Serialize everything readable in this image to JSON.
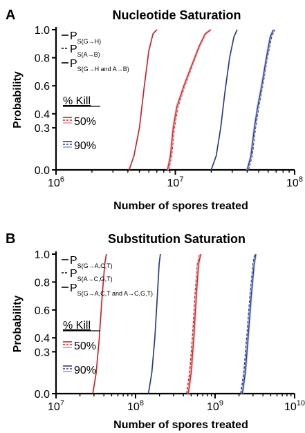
{
  "chart_data": [
    {
      "type": "line",
      "panel_label": "A",
      "title": "Nucleotide Saturation",
      "xlabel": "Number of spores treated",
      "ylabel": "Probability",
      "x_scale": "log",
      "xlim": [
        1000000,
        100000000
      ],
      "ylim": [
        0,
        1
      ],
      "x_ticks": [
        {
          "value": 1000000,
          "base": "10",
          "exp": "6"
        },
        {
          "value": 10000000,
          "base": "10",
          "exp": "7"
        },
        {
          "value": 100000000,
          "base": "10",
          "exp": "8"
        }
      ],
      "y_ticks": [
        {
          "value": 0.0,
          "label": "0.0"
        },
        {
          "value": 0.3,
          "label": "0.3"
        },
        {
          "value": 0.4,
          "label": "0.4"
        },
        {
          "value": 0.6,
          "label": "0.6"
        },
        {
          "value": 0.8,
          "label": "0.8"
        },
        {
          "value": 1.0,
          "label": "1.0"
        }
      ],
      "legend": {
        "placement": "top-left",
        "entries": [
          {
            "dash": "solid",
            "main": "P",
            "sub": "S(G→H)"
          },
          {
            "dash": "dashed",
            "main": "P",
            "sub": "S(A→B)"
          },
          {
            "dash": "solid",
            "main": "P",
            "sub": "S(G→H and A→B)"
          }
        ],
        "kill_title": "% Kill",
        "kill_entries": [
          {
            "label": "50%",
            "color": "#cc2229",
            "light": "#f2a8a8"
          },
          {
            "label": "90%",
            "color": "#2b3990",
            "light": "#a9b4e0"
          }
        ]
      },
      "series": [
        {
          "color": "#cc2229",
          "dash": "solid",
          "x": [
            4100000,
            4500000,
            5000000,
            5500000,
            6000000,
            6500000,
            7000000
          ],
          "y": [
            0.0,
            0.1,
            0.3,
            0.6,
            0.85,
            0.97,
            1.0
          ]
        },
        {
          "color": "#cc2229",
          "dash": "dashed",
          "x": [
            8800000,
            9300000,
            9800000,
            10500000,
            12000000,
            14000000,
            16000000,
            18000000,
            20000000
          ],
          "y": [
            0.0,
            0.1,
            0.3,
            0.45,
            0.6,
            0.75,
            0.88,
            0.97,
            1.0
          ]
        },
        {
          "color": "#cc2229",
          "dash": "solid",
          "light": "#f2a8a8",
          "x": [
            8600000,
            9100000,
            9600000,
            10300000,
            11800000,
            13800000,
            15800000,
            17800000,
            19800000
          ],
          "y": [
            0.0,
            0.1,
            0.3,
            0.45,
            0.6,
            0.75,
            0.88,
            0.97,
            1.0
          ]
        },
        {
          "color": "#2b3990",
          "dash": "solid",
          "x": [
            20000000,
            22000000,
            24000000,
            26000000,
            28500000,
            31000000,
            33000000
          ],
          "y": [
            0.0,
            0.1,
            0.3,
            0.55,
            0.8,
            0.95,
            1.0
          ]
        },
        {
          "color": "#2b3990",
          "dash": "dashed",
          "x": [
            41000000,
            44000000,
            47000000,
            50000000,
            54000000,
            59000000,
            64000000,
            68000000
          ],
          "y": [
            0.0,
            0.1,
            0.3,
            0.45,
            0.6,
            0.8,
            0.95,
            1.0
          ]
        },
        {
          "color": "#2b3990",
          "dash": "solid",
          "light": "#a9b4e0",
          "x": [
            40000000,
            43000000,
            46000000,
            49000000,
            53000000,
            58000000,
            62500000,
            66500000
          ],
          "y": [
            0.0,
            0.1,
            0.3,
            0.45,
            0.6,
            0.8,
            0.95,
            1.0
          ]
        }
      ]
    },
    {
      "type": "line",
      "panel_label": "B",
      "title": "Substitution Saturation",
      "xlabel": "Number of spores treated",
      "ylabel": "Probability",
      "x_scale": "log",
      "xlim": [
        10000000,
        10000000000
      ],
      "ylim": [
        0,
        1
      ],
      "x_ticks": [
        {
          "value": 10000000,
          "base": "10",
          "exp": "7"
        },
        {
          "value": 100000000,
          "base": "10",
          "exp": "8"
        },
        {
          "value": 1000000000,
          "base": "10",
          "exp": "9"
        },
        {
          "value": 10000000000,
          "base": "10",
          "exp": "10"
        }
      ],
      "y_ticks": [
        {
          "value": 0.0,
          "label": "0.0"
        },
        {
          "value": 0.3,
          "label": "0.3"
        },
        {
          "value": 0.4,
          "label": "0.4"
        },
        {
          "value": 0.6,
          "label": "0.6"
        },
        {
          "value": 0.8,
          "label": "0.8"
        },
        {
          "value": 1.0,
          "label": "1.0"
        }
      ],
      "legend": {
        "placement": "top-left",
        "entries": [
          {
            "dash": "solid",
            "main": "P",
            "sub": "S(G→A,C,T)"
          },
          {
            "dash": "dashed",
            "main": "P",
            "sub": "S(A→C,G,T)"
          },
          {
            "dash": "solid",
            "main": "P",
            "sub": "S(G→A,C,T and A→C,G,T)"
          }
        ],
        "kill_title": "% Kill",
        "kill_entries": [
          {
            "label": "50%",
            "color": "#cc2229",
            "light": "#f2a8a8"
          },
          {
            "label": "90%",
            "color": "#2b3990",
            "light": "#a9b4e0"
          }
        ]
      },
      "series": [
        {
          "color": "#cc2229",
          "dash": "solid",
          "x": [
            29000000,
            32000000,
            35000000,
            38000000,
            41000000,
            43000000
          ],
          "y": [
            0.0,
            0.15,
            0.4,
            0.7,
            0.93,
            1.0
          ]
        },
        {
          "color": "#cc2229",
          "dash": "dashed",
          "x": [
            440000000,
            480000000,
            520000000,
            560000000,
            600000000,
            640000000
          ],
          "y": [
            0.0,
            0.15,
            0.4,
            0.7,
            0.93,
            1.0
          ]
        },
        {
          "color": "#cc2229",
          "dash": "solid",
          "light": "#f2a8a8",
          "x": [
            460000000,
            500000000,
            540000000,
            580000000,
            620000000,
            660000000
          ],
          "y": [
            0.0,
            0.15,
            0.4,
            0.7,
            0.93,
            1.0
          ]
        },
        {
          "color": "#2b3990",
          "dash": "solid",
          "x": [
            145000000,
            160000000,
            175000000,
            188000000,
            198000000,
            205000000
          ],
          "y": [
            0.0,
            0.15,
            0.4,
            0.7,
            0.93,
            1.0
          ]
        },
        {
          "color": "#2b3990",
          "dash": "dashed",
          "x": [
            2100000000,
            2300000000,
            2500000000,
            2750000000,
            3000000000,
            3150000000
          ],
          "y": [
            0.0,
            0.15,
            0.4,
            0.7,
            0.93,
            1.0
          ]
        },
        {
          "color": "#2b3990",
          "dash": "solid",
          "light": "#a9b4e0",
          "x": [
            2200000000,
            2400000000,
            2600000000,
            2850000000,
            3100000000,
            3250000000
          ],
          "y": [
            0.0,
            0.15,
            0.4,
            0.7,
            0.93,
            1.0
          ]
        }
      ]
    }
  ]
}
